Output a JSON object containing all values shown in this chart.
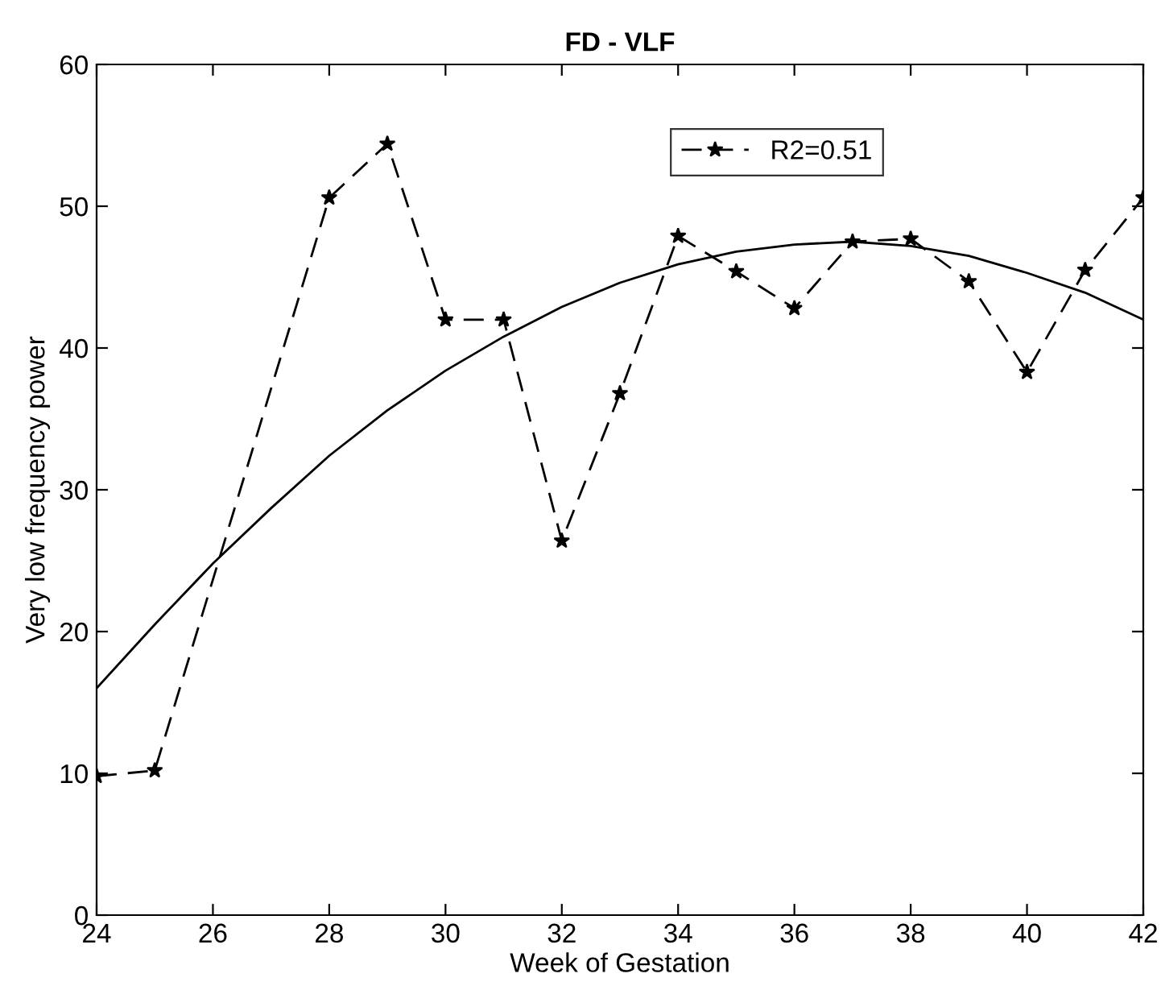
{
  "chart_data": {
    "type": "line",
    "title": "FD - VLF",
    "xlabel": "Week of Gestation",
    "ylabel": "Very low frequency power",
    "xlim": [
      24,
      42
    ],
    "xticks": [
      24,
      26,
      28,
      30,
      32,
      34,
      36,
      38,
      40,
      42
    ],
    "ylim": [
      0,
      60
    ],
    "yticks": [
      0,
      10,
      20,
      30,
      40,
      50,
      60
    ],
    "grid": false,
    "legend": "top",
    "series": [
      {
        "name": "R2=0.51",
        "color": "#000000",
        "marker": "star",
        "line_style": "dashed",
        "x": [
          24,
          25,
          28,
          29,
          30,
          31,
          32,
          33,
          34,
          35,
          36,
          37,
          38,
          39,
          40,
          41,
          42
        ],
        "values": [
          9.8,
          10.2,
          50.6,
          54.4,
          42,
          42,
          26.4,
          36.8,
          47.9,
          45.4,
          42.8,
          47.5,
          47.7,
          44.7,
          38.3,
          45.5,
          50.6
        ]
      },
      {
        "color": "#000000",
        "marker": "none",
        "line_style": "solid",
        "x": [
          24,
          25,
          26,
          27,
          28,
          29,
          30,
          31,
          32,
          33,
          34,
          35,
          36,
          37,
          38,
          39,
          40,
          41,
          42
        ],
        "values": [
          16,
          20.5,
          24.8,
          28.7,
          32.4,
          35.6,
          38.4,
          40.8,
          42.9,
          44.6,
          45.9,
          46.8,
          47.3,
          47.5,
          47.2,
          46.5,
          45.3,
          43.9,
          42
        ]
      }
    ]
  }
}
